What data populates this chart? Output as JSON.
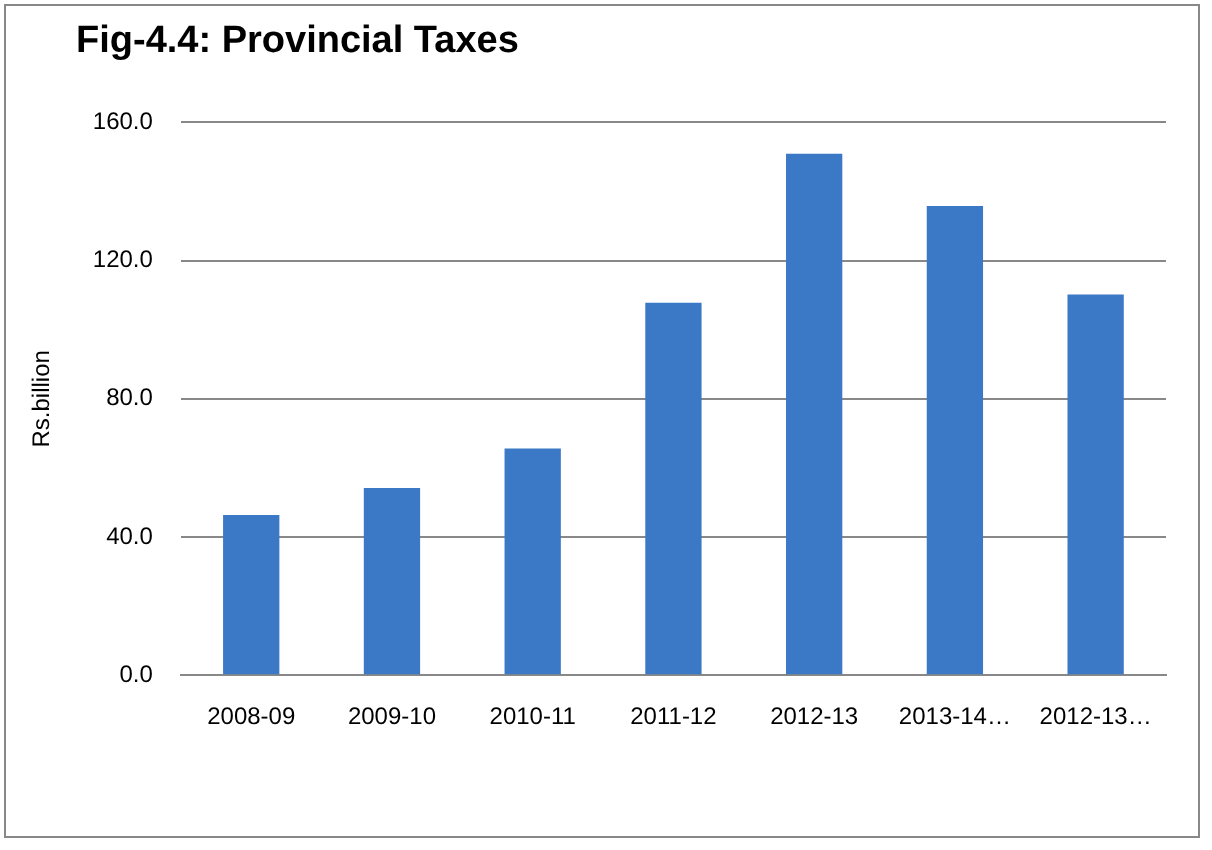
{
  "chart_data": {
    "type": "bar",
    "title": "Fig-4.4: Provincial Taxes",
    "ylabel": "Rs.billion",
    "categories": [
      "2008-09",
      "2009-10",
      "2010-11",
      "2011-12",
      "2012-13",
      "2013-14…",
      "2012-13…"
    ],
    "values": [
      46.4,
      54.2,
      65.6,
      107.8,
      150.9,
      135.8,
      110.2
    ],
    "color": "#3b78c6",
    "ylim": [
      0,
      160
    ],
    "yticks": [
      {
        "value": 0,
        "label": "0.0"
      },
      {
        "value": 40,
        "label": "40.0"
      },
      {
        "value": 80,
        "label": "80.0"
      },
      {
        "value": 120,
        "label": "120.0"
      },
      {
        "value": 160,
        "label": "160.0"
      }
    ],
    "grid": "y",
    "legend": false
  }
}
